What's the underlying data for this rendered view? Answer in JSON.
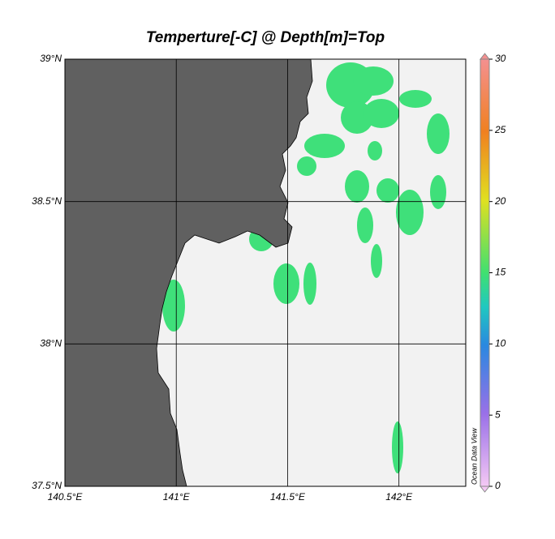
{
  "title": "Temperture[-C] @ Depth[m]=Top",
  "map": {
    "xlim": [
      140.5,
      142.3
    ],
    "ylim": [
      37.5,
      39
    ],
    "xticks": [
      {
        "value": 140.5,
        "label": "140.5°E"
      },
      {
        "value": 141,
        "label": "141°E"
      },
      {
        "value": 141.5,
        "label": "141.5°E"
      },
      {
        "value": 142,
        "label": "142°E"
      }
    ],
    "yticks": [
      {
        "value": 37.5,
        "label": "37.5°N"
      },
      {
        "value": 38,
        "label": "38°N"
      },
      {
        "value": 38.5,
        "label": "38.5°N"
      },
      {
        "value": 39,
        "label": "39°N"
      }
    ]
  },
  "colorbar": {
    "lim": [
      0,
      30
    ],
    "ticks": [
      0,
      5,
      10,
      15,
      20,
      25,
      30
    ]
  },
  "watermark": "Ocean Data View"
}
